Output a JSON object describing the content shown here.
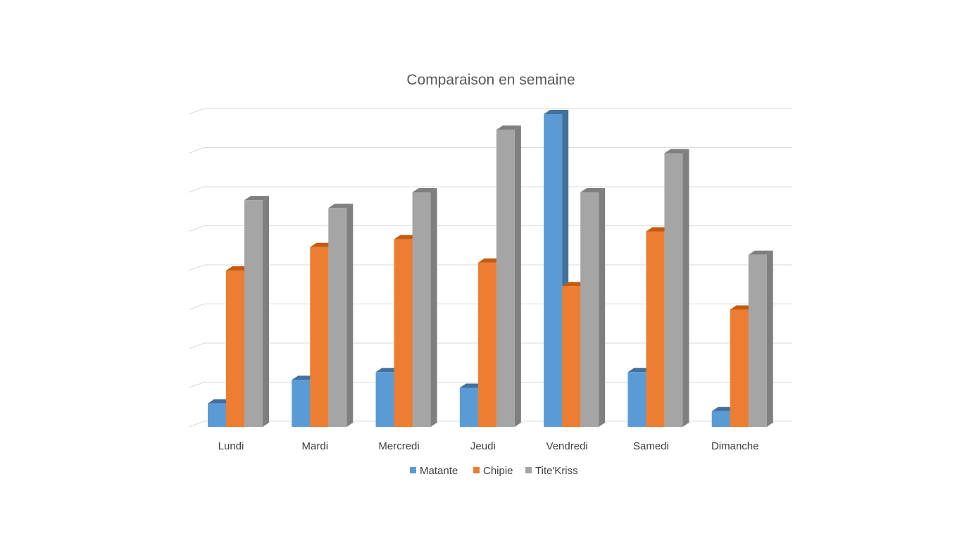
{
  "chart_data": {
    "type": "bar",
    "title": "Comparaison en semaine",
    "xlabel": "",
    "ylabel": "",
    "categories": [
      "Lundi",
      "Mardi",
      "Mercredi",
      "Jeudi",
      "Vendredi",
      "Samedi",
      "Dimanche"
    ],
    "series": [
      {
        "name": "Matante",
        "color": "#5b9bd5",
        "side_color": "#41719c",
        "top_color": "#41719c",
        "values": [
          0.6,
          1.2,
          1.4,
          1.0,
          8.0,
          1.4,
          0.4
        ]
      },
      {
        "name": "Chipie",
        "color": "#ed7d31",
        "side_color": "#ae5a21",
        "top_color": "#c55a11",
        "values": [
          4.0,
          4.6,
          4.8,
          4.2,
          3.6,
          5.0,
          3.0
        ]
      },
      {
        "name": "Tite'Kriss",
        "color": "#a5a5a5",
        "side_color": "#7f7f7f",
        "top_color": "#7f7f7f",
        "values": [
          5.8,
          5.6,
          6.0,
          7.6,
          6.0,
          7.0,
          4.4
        ]
      }
    ],
    "ylim": [
      0,
      8
    ],
    "grid": true,
    "legend_position": "bottom"
  }
}
